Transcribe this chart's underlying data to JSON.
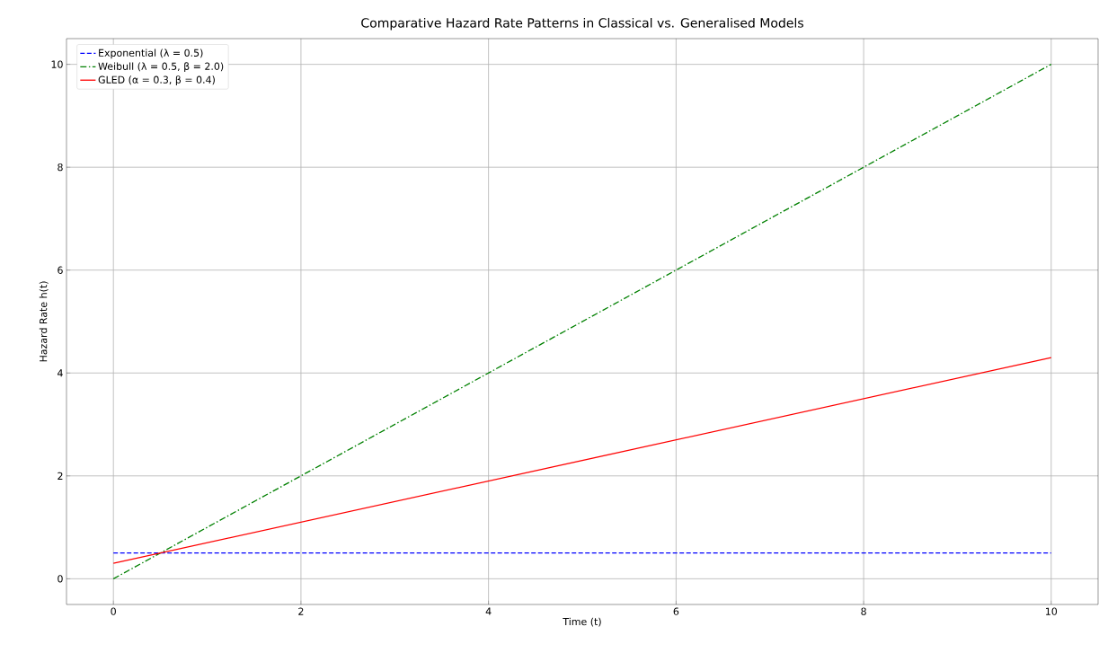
{
  "chart_data": {
    "type": "line",
    "title": "Comparative Hazard Rate Patterns in Classical vs. Generalised Models",
    "xlabel": "Time (t)",
    "ylabel": "Hazard Rate h(t)",
    "x": [
      0,
      10
    ],
    "series": [
      {
        "name": "Exponential (λ = 0.5)",
        "color": "#0000ff",
        "values": [
          0.5,
          0.5
        ],
        "line_style": "dashed"
      },
      {
        "name": "Weibull (λ = 0.5, β = 2.0)",
        "color": "#008000",
        "values": [
          0,
          10
        ],
        "line_style": "dashdot"
      },
      {
        "name": "GLED (α = 0.3, β = 0.4)",
        "color": "#ff0000",
        "values": [
          0.3,
          4.3
        ],
        "line_style": "solid"
      }
    ],
    "xlim": [
      -0.5,
      10.5
    ],
    "ylim": [
      -0.5,
      10.5
    ],
    "xticks": [
      0,
      2,
      4,
      6,
      8,
      10
    ],
    "yticks": [
      0,
      2,
      4,
      6,
      8,
      10
    ],
    "grid": true,
    "legend": "top left",
    "marker": "none"
  }
}
